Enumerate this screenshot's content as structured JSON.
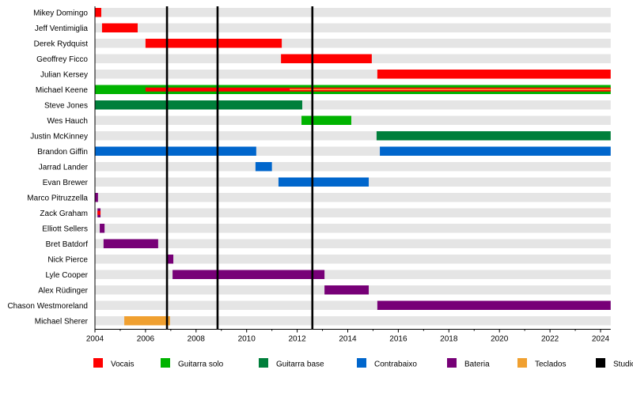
{
  "chart_data": {
    "type": "timeline",
    "xlim": [
      2004,
      2024.4
    ],
    "xticks": [
      2004,
      2006,
      2008,
      2010,
      2012,
      2014,
      2016,
      2018,
      2020,
      2022,
      2024
    ],
    "roles": {
      "vocais": {
        "label": "Vocais",
        "color": "#ff0000"
      },
      "solo": {
        "label": "Guitarra solo",
        "color": "#00b300"
      },
      "base": {
        "label": "Guitarra base",
        "color": "#007f3b"
      },
      "baixo": {
        "label": "Contrabaixo",
        "color": "#0066cc"
      },
      "bateria": {
        "label": "Bateria",
        "color": "#770077"
      },
      "teclados": {
        "label": "Teclados",
        "color": "#f0a030"
      },
      "studio": {
        "label": "Studio",
        "color": "#000000"
      }
    },
    "legend_order": [
      "vocais",
      "solo",
      "base",
      "baixo",
      "bateria",
      "teclados",
      "studio"
    ],
    "members": [
      {
        "name": "Mikey Domingo",
        "spans": [
          {
            "role": "vocais",
            "from": 2004.0,
            "to": 2004.25
          }
        ]
      },
      {
        "name": "Jeff Ventimiglia",
        "spans": [
          {
            "role": "vocais",
            "from": 2004.28,
            "to": 2005.69
          }
        ]
      },
      {
        "name": "Derek Rydquist",
        "spans": [
          {
            "role": "vocais",
            "from": 2006.0,
            "to": 2011.39
          }
        ]
      },
      {
        "name": "Geoffrey Ficco",
        "spans": [
          {
            "role": "vocais",
            "from": 2011.36,
            "to": 2014.95
          }
        ]
      },
      {
        "name": "Julian Kersey",
        "spans": [
          {
            "role": "vocais",
            "from": 2015.17,
            "to": 2024.4
          }
        ]
      },
      {
        "name": "Michael Keene",
        "spans": [
          {
            "role": "solo",
            "from": 2004.0,
            "to": 2024.4
          },
          {
            "role": "vocais",
            "from": 2006.0,
            "to": 2024.4,
            "thin": true
          },
          {
            "role": "teclados",
            "from": 2011.7,
            "to": 2024.4,
            "thin": true
          }
        ]
      },
      {
        "name": "Steve Jones",
        "spans": [
          {
            "role": "base",
            "from": 2004.0,
            "to": 2012.2
          }
        ]
      },
      {
        "name": "Wes Hauch",
        "spans": [
          {
            "role": "solo",
            "from": 2012.17,
            "to": 2014.14
          }
        ]
      },
      {
        "name": "Justin McKinney",
        "spans": [
          {
            "role": "base",
            "from": 2015.14,
            "to": 2024.4
          }
        ]
      },
      {
        "name": "Brandon Giffin",
        "spans": [
          {
            "role": "baixo",
            "from": 2004.0,
            "to": 2010.38
          },
          {
            "role": "baixo",
            "from": 2015.27,
            "to": 2024.4
          }
        ]
      },
      {
        "name": "Jarrad Lander",
        "spans": [
          {
            "role": "baixo",
            "from": 2010.35,
            "to": 2011.0
          }
        ]
      },
      {
        "name": "Evan Brewer",
        "spans": [
          {
            "role": "baixo",
            "from": 2011.26,
            "to": 2014.83
          }
        ]
      },
      {
        "name": "Marco Pitruzzella",
        "spans": [
          {
            "role": "bateria",
            "from": 2004.0,
            "to": 2004.12
          }
        ]
      },
      {
        "name": "Zack Graham",
        "spans": [
          {
            "role": "bateria",
            "from": 2004.1,
            "to": 2004.22
          },
          {
            "role": "vocais",
            "from": 2004.1,
            "to": 2004.22,
            "thin": true
          }
        ]
      },
      {
        "name": "Elliott Sellers",
        "spans": [
          {
            "role": "bateria",
            "from": 2004.19,
            "to": 2004.38
          }
        ]
      },
      {
        "name": "Bret Batdorf",
        "spans": [
          {
            "role": "bateria",
            "from": 2004.34,
            "to": 2006.5
          }
        ]
      },
      {
        "name": "Nick Pierce",
        "spans": [
          {
            "role": "bateria",
            "from": 2006.85,
            "to": 2007.1
          }
        ]
      },
      {
        "name": "Lyle Cooper",
        "spans": [
          {
            "role": "bateria",
            "from": 2007.07,
            "to": 2013.08
          }
        ]
      },
      {
        "name": "Alex Rüdinger",
        "spans": [
          {
            "role": "bateria",
            "from": 2013.08,
            "to": 2014.83
          }
        ]
      },
      {
        "name": "Chason Westmoreland",
        "spans": [
          {
            "role": "bateria",
            "from": 2015.17,
            "to": 2024.4
          }
        ]
      },
      {
        "name": "Michael Sherer",
        "spans": [
          {
            "role": "teclados",
            "from": 2005.16,
            "to": 2006.97
          }
        ]
      }
    ],
    "studio_albums": [
      2006.85,
      2008.85,
      2012.6
    ]
  }
}
